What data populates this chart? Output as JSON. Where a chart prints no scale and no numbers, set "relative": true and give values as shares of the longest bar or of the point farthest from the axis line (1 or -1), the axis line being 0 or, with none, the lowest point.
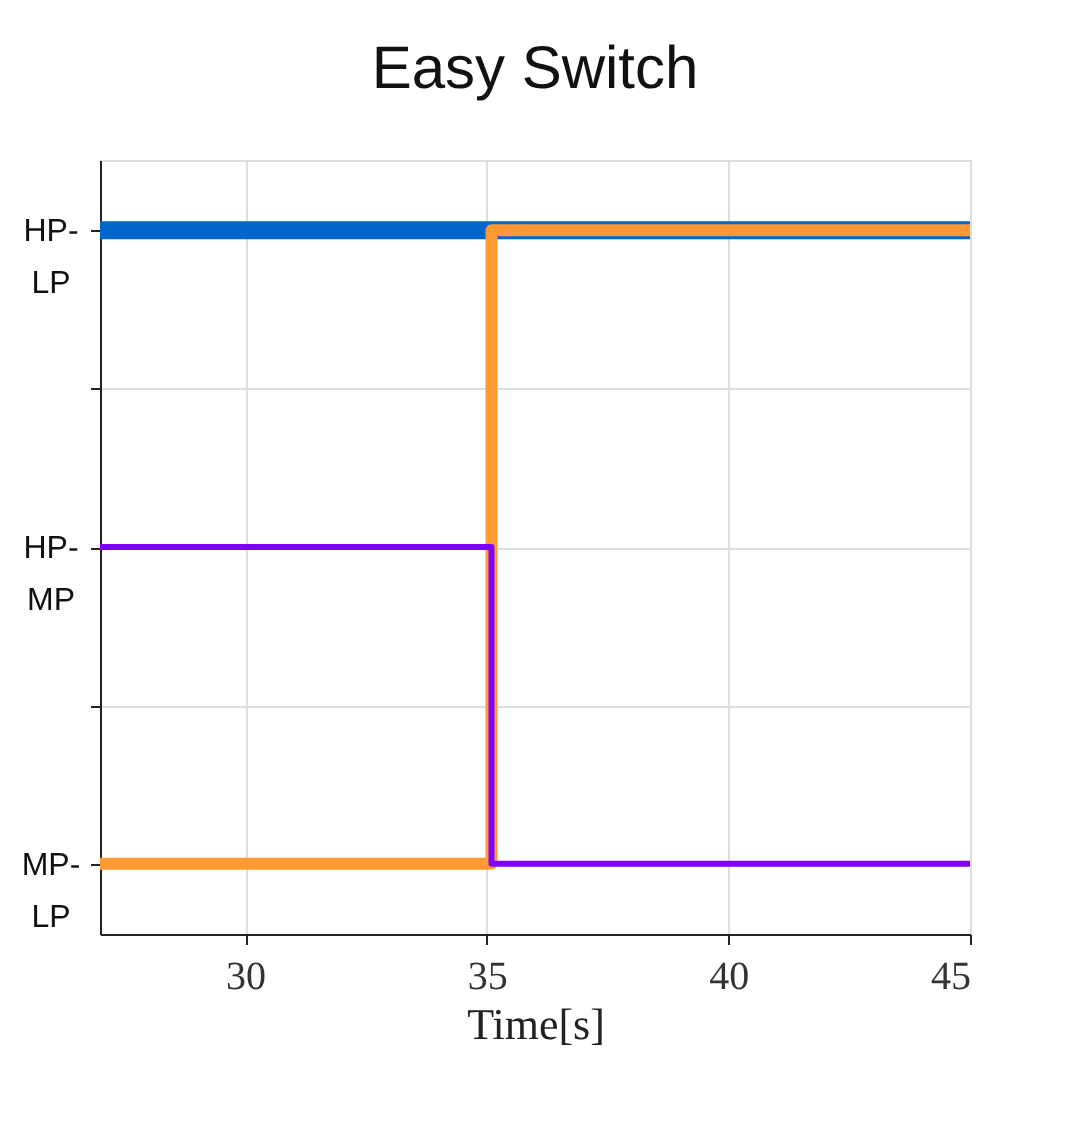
{
  "chart_data": {
    "type": "step",
    "title": "Easy Switch",
    "xlabel": "Time[s]",
    "xlim": [
      27,
      45
    ],
    "xticks": [
      30,
      35,
      40,
      45
    ],
    "relative": true,
    "grid": true,
    "annotations": [
      "HP-LP",
      "HP-MP",
      "MP-LP"
    ],
    "series": [
      {
        "color": "#0066cc",
        "x": [
          27,
          45
        ],
        "values": [
          1.0,
          1.0
        ]
      },
      {
        "color": "#ff9933",
        "x": [
          27,
          35.1,
          45
        ],
        "values": [
          0.1,
          1.0,
          1.0
        ]
      },
      {
        "color": "#8000ff",
        "x": [
          27,
          35.1,
          45
        ],
        "values": [
          0.55,
          0.1,
          0.1
        ]
      }
    ]
  }
}
